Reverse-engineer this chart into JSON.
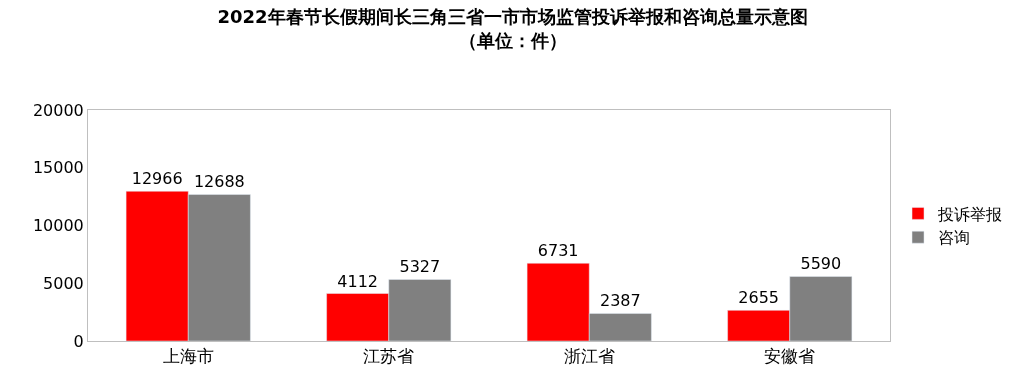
{
  "chart_data": {
    "type": "bar",
    "title": "2022年春节长假期间长三角三省一市市场监管投诉举报和咨询总量示意图",
    "subtitle": "（单位：件）",
    "categories": [
      "上海市",
      "江苏省",
      "浙江省",
      "安徽省"
    ],
    "series": [
      {
        "name": "投诉举报",
        "color": "#ff0000",
        "values": [
          12966,
          4112,
          6731,
          2655
        ]
      },
      {
        "name": "咨询",
        "color": "#808080",
        "values": [
          12688,
          5327,
          2387,
          5590
        ]
      }
    ],
    "ylim": [
      0,
      20000
    ],
    "yticks": [
      0,
      5000,
      10000,
      15000,
      20000
    ],
    "legend": "right",
    "data_labels": true
  }
}
